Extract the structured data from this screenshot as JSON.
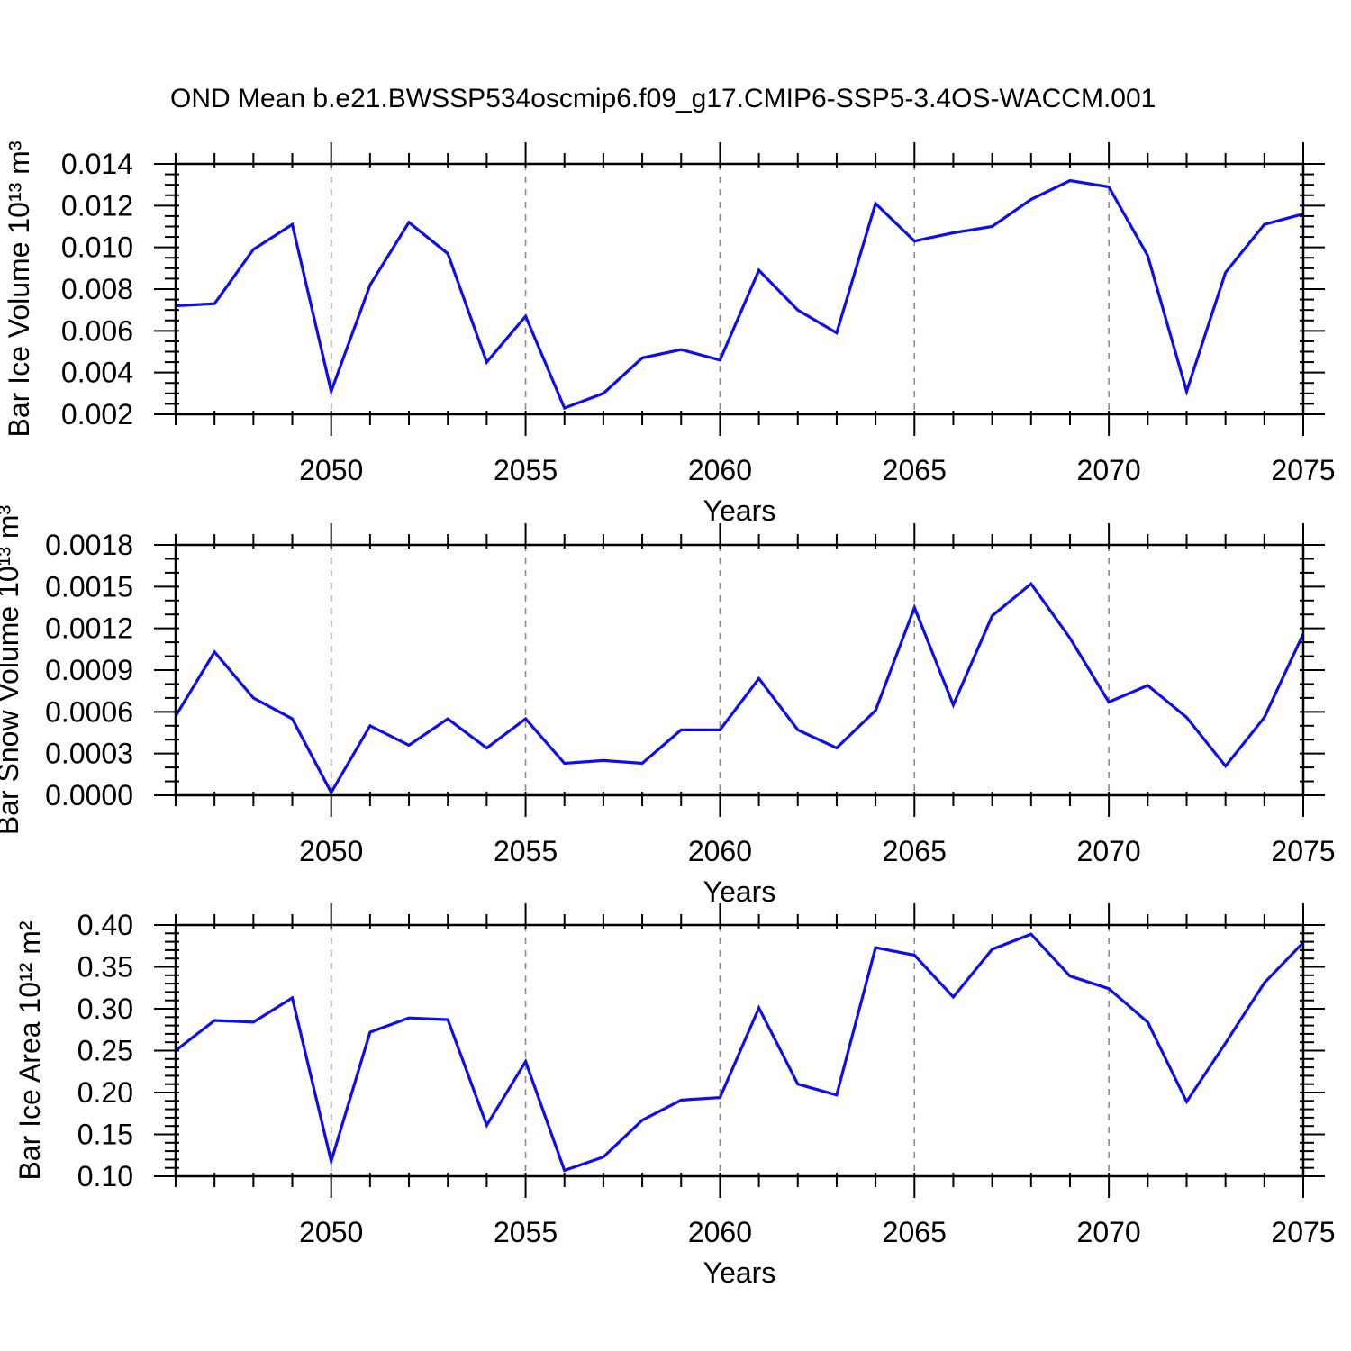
{
  "title": "OND Mean b.e21.BWSSP534oscmip6.f09_g17.CMIP6-SSP5-3.4OS-WACCM.001",
  "colors": {
    "line": "#0d0df2",
    "grid": "#8c8c8c",
    "axis": "#000000"
  },
  "years": [
    2046,
    2047,
    2048,
    2049,
    2050,
    2051,
    2052,
    2053,
    2054,
    2055,
    2056,
    2057,
    2058,
    2059,
    2060,
    2061,
    2062,
    2063,
    2064,
    2065,
    2066,
    2067,
    2068,
    2069,
    2070,
    2071,
    2072,
    2073,
    2074,
    2075
  ],
  "x_axis": {
    "label": "Years",
    "range": [
      2046,
      2075
    ],
    "ticks": [
      2050,
      2055,
      2060,
      2065,
      2070,
      2075
    ],
    "tick_labels": [
      "2050",
      "2055",
      "2060",
      "2065",
      "2070",
      "2075"
    ],
    "minor_step": 1,
    "gridlines": [
      2050,
      2055,
      2060,
      2065,
      2070
    ]
  },
  "chart_data": [
    {
      "type": "line",
      "name": "ice-volume",
      "ylabel": "Bar Ice Volume 10¹³ m³",
      "xlabel": "Years",
      "ylim": [
        0.002,
        0.014
      ],
      "yticks": [
        0.002,
        0.004,
        0.006,
        0.008,
        0.01,
        0.012,
        0.014
      ],
      "ytick_labels": [
        "0.002",
        "0.004",
        "0.006",
        "0.008",
        "0.010",
        "0.012",
        "0.014"
      ],
      "yminor_step": 0.0005,
      "values": [
        0.0072,
        0.0073,
        0.0099,
        0.0111,
        0.0031,
        0.0082,
        0.0112,
        0.0097,
        0.0045,
        0.0067,
        0.0023,
        0.003,
        0.0047,
        0.0051,
        0.0046,
        0.0089,
        0.007,
        0.0059,
        0.0121,
        0.0103,
        0.0107,
        0.011,
        0.0123,
        0.0132,
        0.0129,
        0.0096,
        0.0031,
        0.0088,
        0.0111,
        0.0116
      ]
    },
    {
      "type": "line",
      "name": "snow-volume",
      "ylabel": "Bar Snow Volume 10¹³ m³",
      "xlabel": "Years",
      "ylim": [
        0.0,
        0.0018
      ],
      "yticks": [
        0.0,
        0.0003,
        0.0006,
        0.0009,
        0.0012,
        0.0015,
        0.0018
      ],
      "ytick_labels": [
        "0.0000",
        "0.0003",
        "0.0006",
        "0.0009",
        "0.0012",
        "0.0015",
        "0.0018"
      ],
      "yminor_step": 0.0001,
      "values": [
        0.00057,
        0.00103,
        0.0007,
        0.00055,
        2e-05,
        0.0005,
        0.00036,
        0.00055,
        0.00034,
        0.00055,
        0.00023,
        0.00025,
        0.00023,
        0.00047,
        0.00047,
        0.00084,
        0.00047,
        0.00034,
        0.00061,
        0.00135,
        0.00065,
        0.00129,
        0.00152,
        0.00113,
        0.00067,
        0.00079,
        0.00056,
        0.00021,
        0.00056,
        0.00116
      ]
    },
    {
      "type": "line",
      "name": "ice-area",
      "ylabel": "Bar Ice Area 10¹² m²",
      "xlabel": "Years",
      "ylim": [
        0.1,
        0.4
      ],
      "yticks": [
        0.1,
        0.15,
        0.2,
        0.25,
        0.3,
        0.35,
        0.4
      ],
      "ytick_labels": [
        "0.10",
        "0.15",
        "0.20",
        "0.25",
        "0.30",
        "0.35",
        "0.40"
      ],
      "yminor_step": 0.01,
      "values": [
        0.25,
        0.286,
        0.284,
        0.313,
        0.118,
        0.272,
        0.289,
        0.287,
        0.161,
        0.237,
        0.107,
        0.123,
        0.167,
        0.191,
        0.194,
        0.301,
        0.21,
        0.197,
        0.373,
        0.364,
        0.314,
        0.371,
        0.389,
        0.339,
        0.324,
        0.284,
        0.189,
        0.259,
        0.331,
        0.379
      ]
    }
  ]
}
